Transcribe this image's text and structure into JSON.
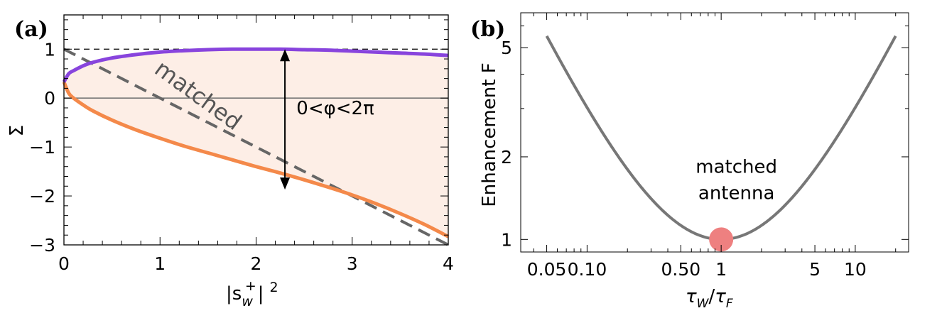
{
  "chart_data": [
    {
      "panel": "(a)",
      "type": "line",
      "xlabel_base": "|s",
      "xlabel_sub": "w",
      "xlabel_sup": "+",
      "xlabel_close": "|",
      "xlabel_power": "2",
      "ylabel": "Σ",
      "xlim": [
        0,
        4
      ],
      "ylim": [
        -3,
        1.7
      ],
      "xticks": [
        {
          "value": 0,
          "label": "0"
        },
        {
          "value": 1,
          "label": "1"
        },
        {
          "value": 2,
          "label": "2"
        },
        {
          "value": 3,
          "label": "3"
        },
        {
          "value": 4,
          "label": "4"
        }
      ],
      "yticks": [
        {
          "value": 1,
          "label": "1"
        },
        {
          "value": 0,
          "label": "0"
        },
        {
          "value": -1,
          "label": "−1"
        },
        {
          "value": -2,
          "label": "−2"
        },
        {
          "value": -3,
          "label": "−3"
        }
      ],
      "series": [
        {
          "role": "upper",
          "color": "#8844dd",
          "x": [
            0,
            0.05,
            0.1,
            0.2,
            0.3,
            0.5,
            0.75,
            1.0,
            1.25,
            1.5,
            1.75,
            2.0,
            2.25,
            2.5,
            2.75,
            3.0,
            3.25,
            3.5,
            3.75,
            4.0
          ],
          "y": [
            0.33,
            0.5,
            0.56,
            0.66,
            0.73,
            0.82,
            0.89,
            0.94,
            0.97,
            0.99,
            1.0,
            1.0,
            1.0,
            0.99,
            0.98,
            0.96,
            0.94,
            0.92,
            0.9,
            0.87
          ]
        },
        {
          "role": "lower",
          "color": "#f4894a",
          "x": [
            0,
            0.05,
            0.1,
            0.2,
            0.3,
            0.5,
            0.75,
            1.0,
            1.25,
            1.5,
            1.75,
            2.0,
            2.25,
            2.5,
            2.75,
            3.0,
            3.25,
            3.5,
            3.75,
            4.0
          ],
          "y": [
            0.33,
            0.1,
            0.0,
            -0.14,
            -0.26,
            -0.45,
            -0.65,
            -0.82,
            -0.98,
            -1.12,
            -1.26,
            -1.4,
            -1.53,
            -1.67,
            -1.82,
            -1.98,
            -2.16,
            -2.36,
            -2.58,
            -2.83
          ]
        },
        {
          "role": "matched",
          "color": "#666666",
          "dashed": true,
          "x": [
            0,
            4
          ],
          "y": [
            1,
            -3
          ]
        },
        {
          "role": "unity",
          "color": "#000000",
          "dashed": true,
          "x": [
            0,
            4
          ],
          "y": [
            1,
            1
          ]
        }
      ],
      "fill_color": "#fdeee6",
      "zero_line_color": "#777777",
      "arrow": {
        "x": 2.3,
        "y1": 1.0,
        "y2": -1.87
      },
      "annotations": [
        {
          "key": "matched",
          "text": "matched",
          "x": 1.35,
          "y": -0.07,
          "angle": 36,
          "color": "#555555"
        },
        {
          "key": "phase",
          "text": "0<φ<2π",
          "x": 2.42,
          "y": -0.33,
          "color": "#000000"
        }
      ]
    },
    {
      "panel": "(b)",
      "type": "line",
      "xlabel": "τW/τF",
      "ylabel": "Enhancement  F",
      "xscale": "log",
      "yscale": "log",
      "xlim": [
        0.032,
        25
      ],
      "ylim": [
        0.9,
        6.7
      ],
      "xticks": [
        {
          "value": 0.05,
          "label": "0.05"
        },
        {
          "value": 0.1,
          "label": "0.10"
        },
        {
          "value": 0.5,
          "label": "0.50"
        },
        {
          "value": 1,
          "label": "1"
        },
        {
          "value": 5,
          "label": "5"
        },
        {
          "value": 10,
          "label": "10"
        }
      ],
      "yticks": [
        {
          "value": 1,
          "label": "1"
        },
        {
          "value": 2,
          "label": "2"
        },
        {
          "value": 5,
          "label": "5"
        }
      ],
      "series": [
        {
          "role": "F",
          "color": "#777777",
          "formula": "(1+x)^2/(4x)",
          "x_range": [
            0.05,
            20
          ]
        }
      ],
      "marker": {
        "x": 1,
        "y": 1,
        "color": "#ee8080"
      },
      "annotation": {
        "line1": "matched",
        "line2": "antenna",
        "x": 1.3,
        "y": 1.75
      }
    }
  ]
}
